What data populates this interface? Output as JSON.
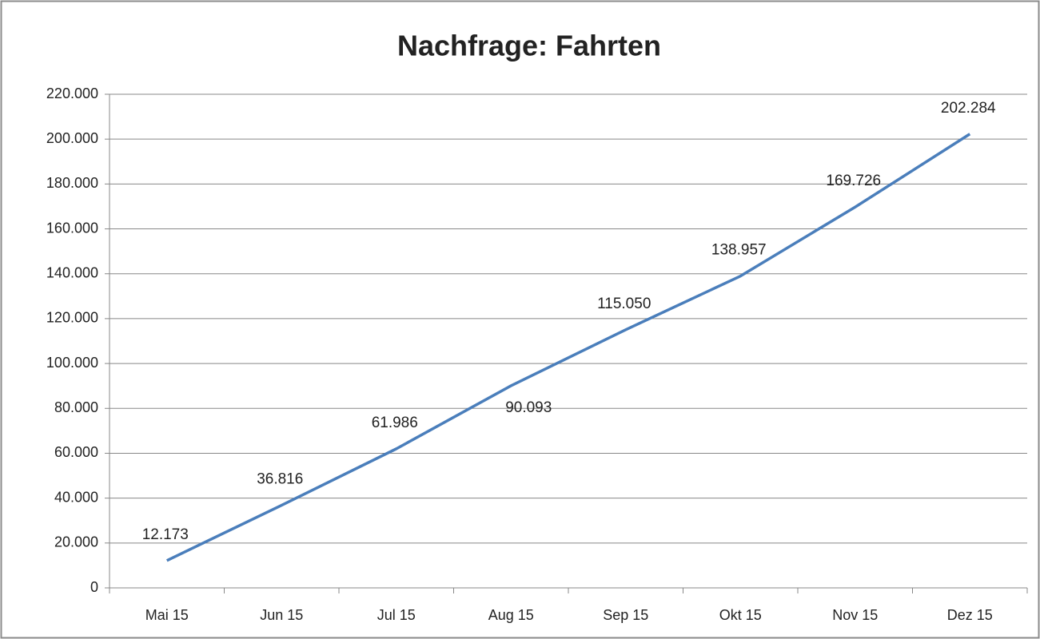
{
  "chart_data": {
    "type": "line",
    "title": "Nachfrage: Fahrten",
    "categories": [
      "Mai 15",
      "Jun 15",
      "Jul 15",
      "Aug 15",
      "Sep 15",
      "Okt 15",
      "Nov 15",
      "Dez 15"
    ],
    "values": [
      12173,
      36816,
      61986,
      90093,
      115050,
      138957,
      169726,
      202284
    ],
    "value_labels": [
      "12.173",
      "36.816",
      "61.986",
      "90.093",
      "115.050",
      "138.957",
      "169.726",
      "202.284"
    ],
    "color": "#4a7ebb",
    "ylim": [
      0,
      220000
    ],
    "yticks": [
      0,
      {
        "value": 20000,
        "label": "20.000"
      },
      {
        "value": 40000,
        "label": "40.000"
      },
      {
        "value": 60000,
        "label": "60.000"
      },
      {
        "value": 80000,
        "label": "80.000"
      },
      {
        "value": 100000,
        "label": "100.000"
      },
      {
        "value": 120000,
        "label": "120.000"
      },
      {
        "value": 140000,
        "label": "140.000"
      },
      {
        "value": 160000,
        "label": "160.000"
      },
      {
        "value": 180000,
        "label": "180.000"
      },
      {
        "value": 200000,
        "label": "200.000"
      },
      {
        "value": 220000,
        "label": "220.000"
      }
    ],
    "grid": true
  }
}
